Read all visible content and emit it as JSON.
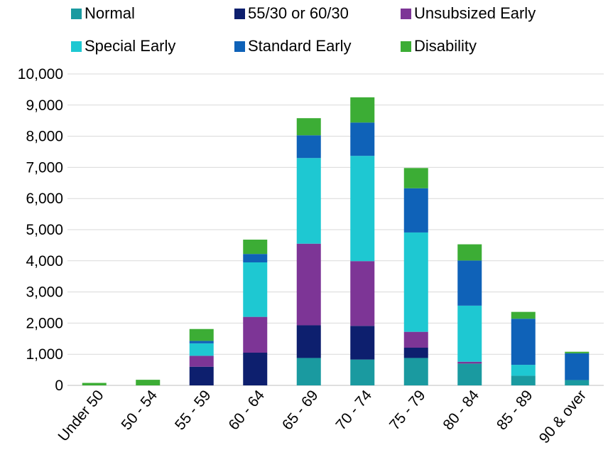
{
  "chart_data": {
    "type": "bar",
    "stacked": true,
    "title": "",
    "xlabel": "",
    "ylabel": "",
    "ylim": [
      0,
      10000
    ],
    "yticks": [
      "0",
      "1,000",
      "2,000",
      "3,000",
      "4,000",
      "5,000",
      "6,000",
      "7,000",
      "8,000",
      "9,000",
      "10,000"
    ],
    "grid": true,
    "legend_position": "top",
    "categories": [
      "Under 50",
      "50 - 54",
      "55 - 59",
      "60 - 64",
      "65 - 69",
      "70 - 74",
      "75 - 79",
      "80 - 84",
      "85 - 89",
      "90 & over"
    ],
    "series": [
      {
        "name": "Normal",
        "color": "#1a9aa0",
        "values": [
          0,
          0,
          0,
          0,
          880,
          830,
          880,
          700,
          310,
          170
        ]
      },
      {
        "name": "55/30 or 60/30",
        "color": "#0d1f6e",
        "values": [
          0,
          0,
          600,
          1050,
          1050,
          1080,
          330,
          0,
          0,
          0
        ]
      },
      {
        "name": "Unsubsized Early",
        "color": "#7d3596",
        "values": [
          0,
          0,
          350,
          1150,
          2620,
          2080,
          510,
          60,
          0,
          0
        ]
      },
      {
        "name": "Special Early",
        "color": "#1ec8d2",
        "values": [
          0,
          0,
          400,
          1750,
          2750,
          3380,
          3190,
          1800,
          350,
          0
        ]
      },
      {
        "name": "Standard Early",
        "color": "#0f62b8",
        "values": [
          0,
          0,
          80,
          270,
          730,
          1070,
          1420,
          1450,
          1480,
          860
        ]
      },
      {
        "name": "Disability",
        "color": "#3cad35",
        "values": [
          80,
          180,
          380,
          460,
          550,
          810,
          650,
          520,
          220,
          50
        ]
      }
    ]
  }
}
